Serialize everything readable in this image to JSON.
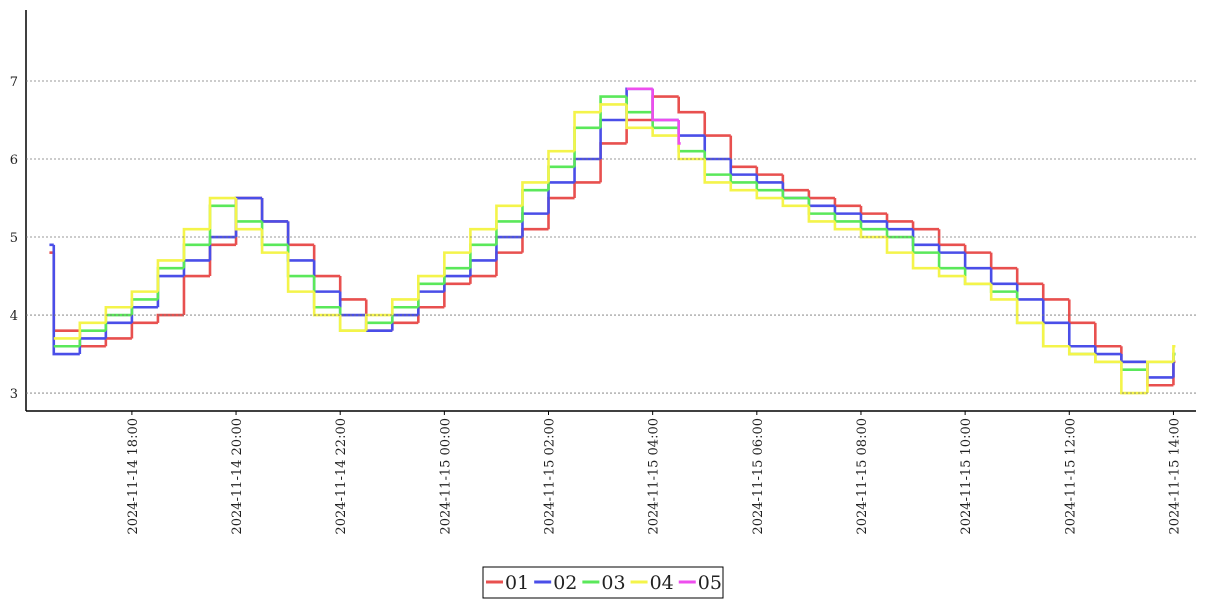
{
  "chart_data": {
    "type": "line",
    "step": true,
    "grid": true,
    "legend": "bottom",
    "x": [
      "2024-11-14 16:25",
      "2024-11-14 16:30",
      "2024-11-14 17:00",
      "2024-11-14 17:30",
      "2024-11-14 18:00",
      "2024-11-14 18:30",
      "2024-11-14 19:00",
      "2024-11-14 19:30",
      "2024-11-14 20:00",
      "2024-11-14 20:30",
      "2024-11-14 21:00",
      "2024-11-14 21:30",
      "2024-11-14 22:00",
      "2024-11-14 22:30",
      "2024-11-14 23:00",
      "2024-11-14 23:30",
      "2024-11-15 00:00",
      "2024-11-15 00:30",
      "2024-11-15 01:00",
      "2024-11-15 01:30",
      "2024-11-15 02:00",
      "2024-11-15 02:30",
      "2024-11-15 03:00",
      "2024-11-15 03:30",
      "2024-11-15 04:00",
      "2024-11-15 04:30",
      "2024-11-15 05:00",
      "2024-11-15 05:30",
      "2024-11-15 06:00",
      "2024-11-15 06:30",
      "2024-11-15 07:00",
      "2024-11-15 07:30",
      "2024-11-15 08:00",
      "2024-11-15 08:30",
      "2024-11-15 09:00",
      "2024-11-15 09:30",
      "2024-11-15 10:00",
      "2024-11-15 10:30",
      "2024-11-15 11:00",
      "2024-11-15 11:30",
      "2024-11-15 12:00",
      "2024-11-15 12:30",
      "2024-11-15 13:00",
      "2024-11-15 13:30",
      "2024-11-15 14:00"
    ],
    "series": [
      {
        "name": "01",
        "color": "#e8504f",
        "values": [
          4.8,
          3.8,
          3.6,
          3.7,
          3.9,
          4.0,
          4.5,
          4.9,
          5.5,
          5.2,
          4.9,
          4.5,
          4.2,
          3.8,
          3.9,
          4.1,
          4.4,
          4.5,
          4.8,
          5.1,
          5.5,
          5.7,
          6.2,
          6.5,
          6.8,
          6.6,
          6.3,
          5.9,
          5.8,
          5.6,
          5.5,
          5.4,
          5.3,
          5.2,
          5.1,
          4.9,
          4.8,
          4.6,
          4.4,
          4.2,
          3.9,
          3.6,
          3.4,
          3.1,
          3.4
        ]
      },
      {
        "name": "02",
        "color": "#4a4ee8",
        "values": [
          4.9,
          3.5,
          3.7,
          3.9,
          4.1,
          4.5,
          4.7,
          5.0,
          5.5,
          5.2,
          4.7,
          4.3,
          4.0,
          3.8,
          4.0,
          4.3,
          4.5,
          4.7,
          5.0,
          5.3,
          5.7,
          6.0,
          6.5,
          6.9,
          6.5,
          6.3,
          6.0,
          5.8,
          5.7,
          5.5,
          5.4,
          5.3,
          5.2,
          5.1,
          4.9,
          4.8,
          4.6,
          4.4,
          4.2,
          3.9,
          3.6,
          3.5,
          3.4,
          3.2,
          3.5
        ]
      },
      {
        "name": "03",
        "color": "#5ae85a",
        "values": [
          null,
          3.6,
          3.8,
          4.0,
          4.2,
          4.6,
          4.9,
          5.4,
          5.2,
          4.9,
          4.5,
          4.1,
          3.8,
          3.9,
          4.1,
          4.4,
          4.6,
          4.9,
          5.2,
          5.6,
          5.9,
          6.4,
          6.8,
          6.6,
          6.4,
          6.1,
          5.8,
          5.7,
          5.6,
          5.5,
          5.3,
          5.2,
          5.1,
          5.0,
          4.8,
          4.6,
          4.4,
          4.3,
          3.9,
          3.6,
          3.5,
          3.4,
          3.3,
          3.4,
          3.5
        ]
      },
      {
        "name": "04",
        "color": "#f4f44a",
        "values": [
          null,
          3.7,
          3.9,
          4.1,
          4.3,
          4.7,
          5.1,
          5.5,
          5.1,
          4.8,
          4.3,
          4.0,
          3.8,
          4.0,
          4.2,
          4.5,
          4.8,
          5.1,
          5.4,
          5.7,
          6.1,
          6.6,
          6.7,
          6.4,
          6.3,
          6.0,
          5.7,
          5.6,
          5.5,
          5.4,
          5.2,
          5.1,
          5.0,
          4.8,
          4.6,
          4.5,
          4.4,
          4.2,
          3.9,
          3.6,
          3.5,
          3.4,
          3.0,
          3.4,
          3.6
        ]
      },
      {
        "name": "05",
        "color": "#ee4eee",
        "values": [
          null,
          null,
          null,
          null,
          null,
          null,
          null,
          null,
          null,
          null,
          null,
          null,
          null,
          null,
          null,
          null,
          null,
          null,
          null,
          null,
          null,
          null,
          null,
          6.9,
          6.5,
          6.2,
          null,
          null,
          null,
          null,
          null,
          null,
          null,
          null,
          null,
          null,
          null,
          null,
          null,
          null,
          null,
          null,
          null,
          null,
          null
        ]
      }
    ],
    "xlim": [
      "2024-11-14 15:58",
      "2024-11-15 14:26"
    ],
    "xticks": [
      "2024-11-14 18:00",
      "2024-11-14 20:00",
      "2024-11-14 22:00",
      "2024-11-15 00:00",
      "2024-11-15 02:00",
      "2024-11-15 04:00",
      "2024-11-15 06:00",
      "2024-11-15 08:00",
      "2024-11-15 10:00",
      "2024-11-15 12:00",
      "2024-11-15 14:00"
    ],
    "ylim": [
      2.77,
      7.91
    ],
    "yticks": [
      3,
      4,
      5,
      6,
      7
    ]
  }
}
